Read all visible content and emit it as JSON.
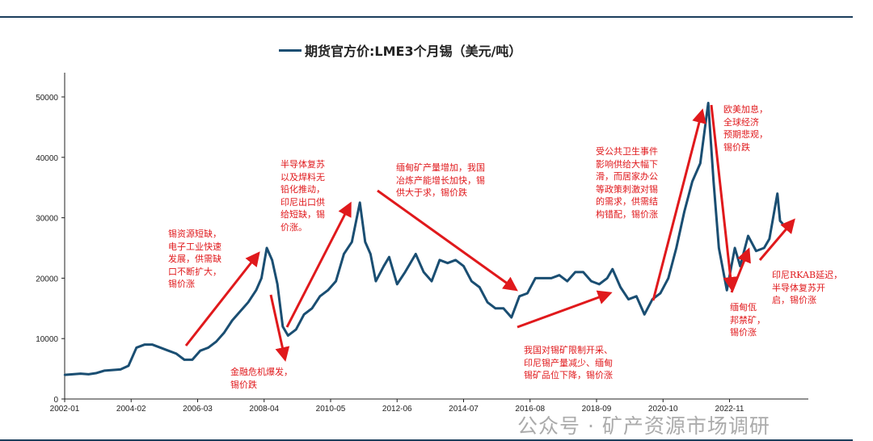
{
  "chart_data": {
    "type": "line",
    "title": "期货官方价:LME3个月锡（美元/吨）",
    "legend": [
      "期货官方价:LME3个月锡（美元/吨）"
    ],
    "legend_position": "top",
    "xlabel": "",
    "ylabel": "",
    "ylim": [
      0,
      50000
    ],
    "yticks": [
      0,
      10000,
      20000,
      30000,
      40000,
      50000
    ],
    "xticks": [
      "2002-01",
      "2004-02",
      "2006-03",
      "2008-04",
      "2010-05",
      "2012-06",
      "2014-07",
      "2016-08",
      "2018-09",
      "2020-10",
      "2022-11"
    ],
    "grid": false,
    "line_color": "#1a4e72",
    "annotation_color": "#e0191c",
    "series": [
      {
        "name": "期货官方价:LME3个月锡",
        "points": [
          [
            "2002-01",
            4000
          ],
          [
            "2002-04",
            4100
          ],
          [
            "2002-07",
            4200
          ],
          [
            "2002-10",
            4100
          ],
          [
            "2003-01",
            4300
          ],
          [
            "2003-04",
            4700
          ],
          [
            "2003-07",
            4800
          ],
          [
            "2003-10",
            4900
          ],
          [
            "2004-01",
            5500
          ],
          [
            "2004-04",
            8500
          ],
          [
            "2004-07",
            9000
          ],
          [
            "2004-10",
            9000
          ],
          [
            "2005-01",
            8500
          ],
          [
            "2005-04",
            8000
          ],
          [
            "2005-07",
            7500
          ],
          [
            "2005-10",
            6500
          ],
          [
            "2006-01",
            6500
          ],
          [
            "2006-04",
            8000
          ],
          [
            "2006-07",
            8500
          ],
          [
            "2006-10",
            9500
          ],
          [
            "2007-01",
            11000
          ],
          [
            "2007-04",
            13000
          ],
          [
            "2007-07",
            14500
          ],
          [
            "2007-10",
            16000
          ],
          [
            "2008-01",
            18000
          ],
          [
            "2008-03",
            20000
          ],
          [
            "2008-05",
            25000
          ],
          [
            "2008-07",
            23000
          ],
          [
            "2008-09",
            19000
          ],
          [
            "2008-11",
            12000
          ],
          [
            "2009-01",
            10500
          ],
          [
            "2009-04",
            11500
          ],
          [
            "2009-07",
            14000
          ],
          [
            "2009-10",
            15000
          ],
          [
            "2010-01",
            17000
          ],
          [
            "2010-04",
            18000
          ],
          [
            "2010-07",
            19500
          ],
          [
            "2010-10",
            24000
          ],
          [
            "2011-01",
            26000
          ],
          [
            "2011-04",
            32500
          ],
          [
            "2011-06",
            26000
          ],
          [
            "2011-08",
            24000
          ],
          [
            "2011-10",
            19500
          ],
          [
            "2012-01",
            22000
          ],
          [
            "2012-03",
            23500
          ],
          [
            "2012-06",
            19000
          ],
          [
            "2012-09",
            21000
          ],
          [
            "2013-01",
            24000
          ],
          [
            "2013-04",
            21000
          ],
          [
            "2013-07",
            19500
          ],
          [
            "2013-10",
            23000
          ],
          [
            "2014-01",
            22500
          ],
          [
            "2014-04",
            23000
          ],
          [
            "2014-07",
            22000
          ],
          [
            "2014-10",
            19500
          ],
          [
            "2015-01",
            18500
          ],
          [
            "2015-04",
            16000
          ],
          [
            "2015-07",
            15000
          ],
          [
            "2015-10",
            15000
          ],
          [
            "2016-01",
            13500
          ],
          [
            "2016-04",
            17000
          ],
          [
            "2016-07",
            17500
          ],
          [
            "2016-10",
            20000
          ],
          [
            "2017-01",
            20000
          ],
          [
            "2017-04",
            20000
          ],
          [
            "2017-07",
            20500
          ],
          [
            "2017-10",
            19500
          ],
          [
            "2018-01",
            21000
          ],
          [
            "2018-04",
            21000
          ],
          [
            "2018-07",
            19500
          ],
          [
            "2018-10",
            19000
          ],
          [
            "2019-01",
            20000
          ],
          [
            "2019-03",
            21500
          ],
          [
            "2019-06",
            18500
          ],
          [
            "2019-09",
            16500
          ],
          [
            "2019-12",
            17000
          ],
          [
            "2020-03",
            14000
          ],
          [
            "2020-06",
            16500
          ],
          [
            "2020-09",
            17500
          ],
          [
            "2020-12",
            20000
          ],
          [
            "2021-03",
            25000
          ],
          [
            "2021-06",
            31000
          ],
          [
            "2021-09",
            36000
          ],
          [
            "2021-12",
            39000
          ],
          [
            "2022-03",
            49000
          ],
          [
            "2022-05",
            36000
          ],
          [
            "2022-07",
            25000
          ],
          [
            "2022-10",
            18000
          ],
          [
            "2023-01",
            25000
          ],
          [
            "2023-03",
            22000
          ],
          [
            "2023-06",
            27000
          ],
          [
            "2023-09",
            24500
          ],
          [
            "2023-12",
            25000
          ],
          [
            "2024-02",
            26500
          ],
          [
            "2024-04",
            31500
          ],
          [
            "2024-05",
            34000
          ],
          [
            "2024-06",
            29500
          ],
          [
            "2024-07",
            29000
          ]
        ]
      }
    ],
    "annotations": [
      {
        "id": "a1",
        "text": "锡资源短缺，\n电子工业快速\n发展，供需缺\n口不断扩大，\n锡价涨"
      },
      {
        "id": "a2",
        "text": "半导体复苏\n以及焊料无\n铅化推动，\n印尼出口供\n给短缺，锡\n价涨。"
      },
      {
        "id": "a3",
        "text": "金融危机爆发，\n锡价跌"
      },
      {
        "id": "a4",
        "text": "缅甸矿产量增加，我国\n冶炼产能增长加快，锡\n供大于求，锡价跌"
      },
      {
        "id": "a5",
        "text": "我国对锡矿限制开采、\n印尼锡产量减少、缅甸\n锡矿品位下降，锡价涨"
      },
      {
        "id": "a6",
        "text": "受公共卫生事件\n影响供给大幅下\n滑，而居家办公\n等政策刺激对锡\n的需求，供需结\n构错配，锡价涨"
      },
      {
        "id": "a7",
        "text": "欧美加息，\n全球经济\n预期悲观，\n锡价跌"
      },
      {
        "id": "a8",
        "text": "缅甸佤\n邦禁矿，\n锡价涨"
      },
      {
        "id": "a9",
        "text": "印尼RKAB延迟，\n半导体复苏开\n启，锡价涨"
      }
    ]
  },
  "watermark": "公众号 · 矿产资源市场调研"
}
